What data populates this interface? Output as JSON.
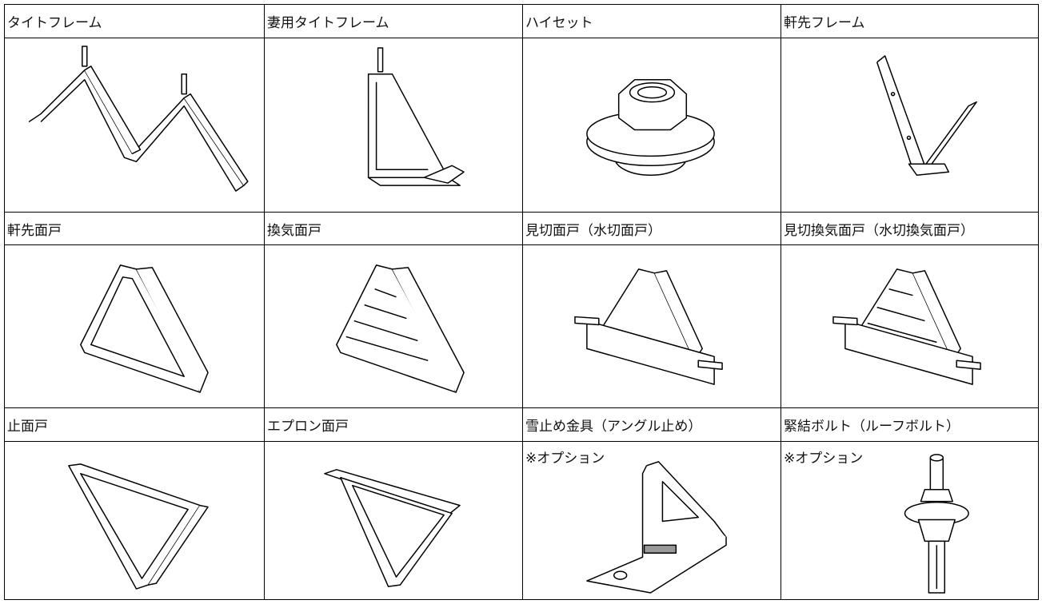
{
  "items": [
    {
      "label": "タイトフレーム"
    },
    {
      "label": "妻用タイトフレーム"
    },
    {
      "label": "ハイセット"
    },
    {
      "label": "軒先フレーム"
    },
    {
      "label": "軒先面戸"
    },
    {
      "label": "換気面戸"
    },
    {
      "label": "見切面戸（水切面戸）"
    },
    {
      "label": "見切換気面戸（水切換気面戸）"
    },
    {
      "label": "止面戸"
    },
    {
      "label": "エプロン面戸"
    },
    {
      "label": "雪止め金具（アングル止め）",
      "note": "※オプション"
    },
    {
      "label": "緊結ボルト（ルーフボルト）",
      "note": "※オプション"
    }
  ]
}
